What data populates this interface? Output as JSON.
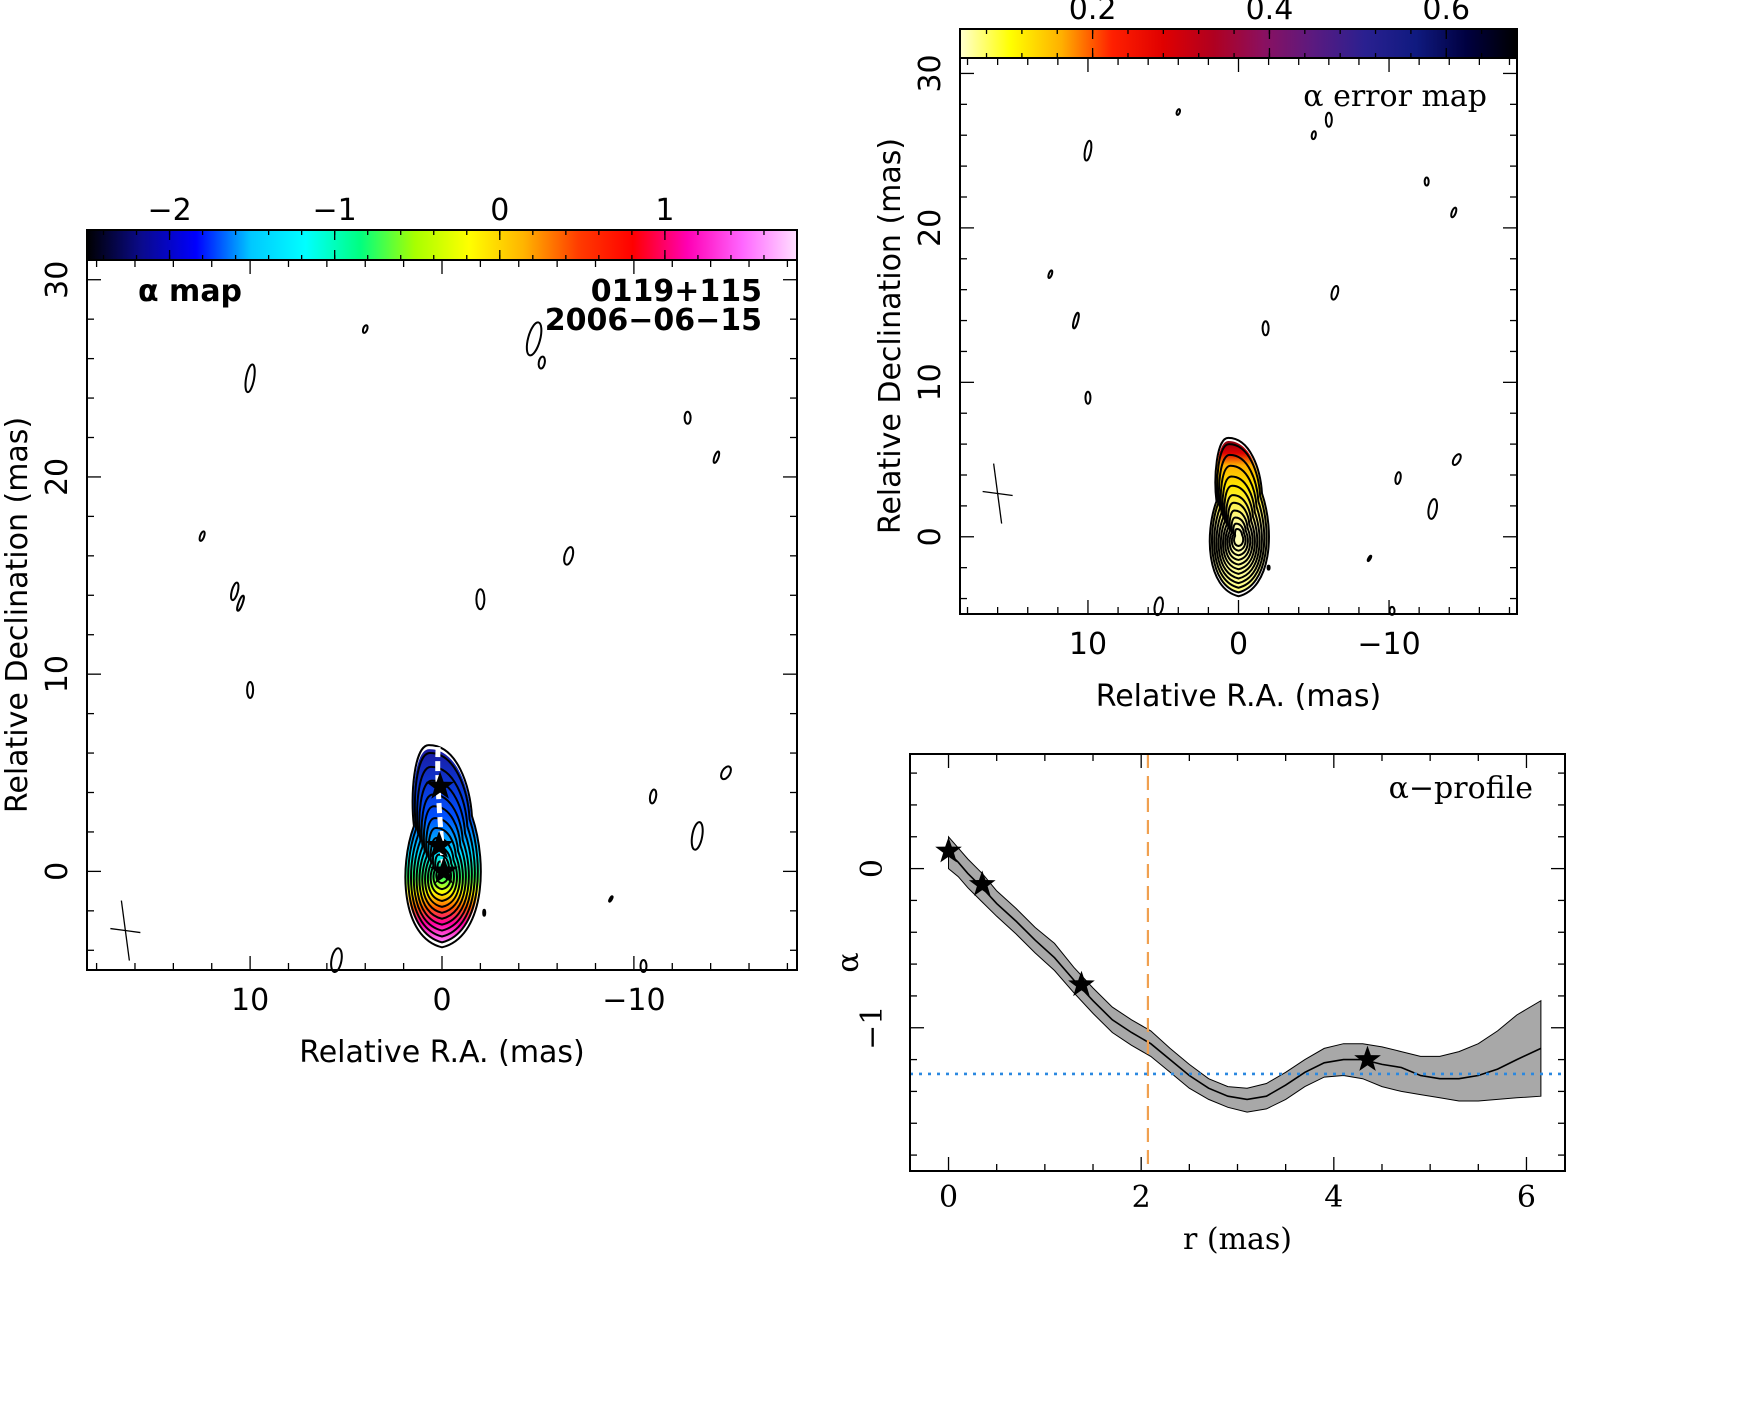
{
  "chart_data": [
    {
      "type": "heatmap",
      "title": "α map",
      "source_label": "0119+115",
      "date_label": "2006−06−15",
      "xlabel": "Relative R.A. (mas)",
      "ylabel": "Relative Declination (mas)",
      "xlim": [
        18.5,
        -18.5
      ],
      "ylim": [
        -5,
        31
      ],
      "x_ticks": [
        10,
        0,
        -10
      ],
      "y_ticks": [
        0,
        10,
        20,
        30
      ],
      "colorbar": {
        "range": [
          -2.5,
          1.8
        ],
        "ticks": [
          -2,
          -1,
          0,
          1
        ],
        "tick_labels": [
          "−2",
          "−1",
          "0",
          "1"
        ],
        "colors": [
          "#000000",
          "#0a0a8c",
          "#0000ff",
          "#00c8ff",
          "#00ffff",
          "#00ff80",
          "#a8ff00",
          "#ffff00",
          "#ffb400",
          "#ff3c00",
          "#ff0000",
          "#ff00b4",
          "#ff66ff",
          "#ffe0ff"
        ]
      },
      "stars": [
        [
          0.1,
          4.3
        ],
        [
          0.15,
          1.3
        ],
        [
          -0.1,
          0.0
        ]
      ],
      "beam_center": [
        16.5,
        -3.0
      ]
    },
    {
      "type": "heatmap",
      "title": "α error map",
      "xlabel": "Relative R.A. (mas)",
      "ylabel": "Relative Declination (mas)",
      "xlim": [
        18.5,
        -18.5
      ],
      "ylim": [
        -5,
        31
      ],
      "x_ticks": [
        10,
        0,
        -10
      ],
      "y_ticks": [
        0,
        10,
        20,
        30
      ],
      "colorbar": {
        "range": [
          0.05,
          0.68
        ],
        "ticks": [
          0.2,
          0.4,
          0.6
        ],
        "tick_labels": [
          "0.2",
          "0.4",
          "0.6"
        ],
        "colors": [
          "#ffffd0",
          "#ffff00",
          "#ffb000",
          "#ff2000",
          "#e00000",
          "#b00020",
          "#8a1060",
          "#5a1a80",
          "#2a2090",
          "#101a80",
          "#000040",
          "#000000"
        ]
      },
      "beam_center": [
        16.0,
        2.8
      ]
    },
    {
      "type": "line",
      "title": "α−profile",
      "xlabel": "r (mas)",
      "ylabel": "α",
      "xlim": [
        -0.4,
        6.4
      ],
      "ylim": [
        -1.9,
        0.72
      ],
      "x_ticks": [
        0,
        2,
        4,
        6
      ],
      "y_ticks": [
        0,
        -1
      ],
      "y_tick_labels": [
        "0",
        "−1"
      ],
      "series": [
        {
          "x": [
            0.0,
            0.1,
            0.2,
            0.35,
            0.5,
            0.7,
            0.9,
            1.1,
            1.3,
            1.5,
            1.7,
            1.9,
            2.1,
            2.3,
            2.5,
            2.7,
            2.9,
            3.1,
            3.3,
            3.5,
            3.7,
            3.9,
            4.1,
            4.3,
            4.5,
            4.7,
            4.9,
            5.1,
            5.3,
            5.5,
            5.7,
            5.9,
            6.15
          ],
          "y": [
            0.1,
            0.04,
            -0.03,
            -0.12,
            -0.22,
            -0.33,
            -0.45,
            -0.56,
            -0.7,
            -0.83,
            -0.95,
            -1.03,
            -1.1,
            -1.2,
            -1.3,
            -1.38,
            -1.43,
            -1.45,
            -1.43,
            -1.36,
            -1.28,
            -1.22,
            -1.2,
            -1.2,
            -1.23,
            -1.25,
            -1.3,
            -1.32,
            -1.32,
            -1.3,
            -1.26,
            -1.2,
            -1.13
          ],
          "err_upper": [
            0.2,
            0.13,
            0.06,
            -0.03,
            -0.14,
            -0.25,
            -0.37,
            -0.47,
            -0.62,
            -0.75,
            -0.87,
            -0.95,
            -1.02,
            -1.13,
            -1.23,
            -1.32,
            -1.37,
            -1.38,
            -1.35,
            -1.28,
            -1.2,
            -1.13,
            -1.1,
            -1.1,
            -1.12,
            -1.15,
            -1.18,
            -1.18,
            -1.15,
            -1.1,
            -1.02,
            -0.92,
            -0.83
          ],
          "err_lower": [
            0.0,
            -0.05,
            -0.12,
            -0.21,
            -0.3,
            -0.41,
            -0.53,
            -0.64,
            -0.78,
            -0.91,
            -1.03,
            -1.11,
            -1.18,
            -1.28,
            -1.38,
            -1.45,
            -1.5,
            -1.53,
            -1.51,
            -1.45,
            -1.37,
            -1.31,
            -1.3,
            -1.32,
            -1.37,
            -1.4,
            -1.42,
            -1.44,
            -1.46,
            -1.46,
            -1.45,
            -1.44,
            -1.43
          ]
        }
      ],
      "stars": [
        [
          0.0,
          0.11
        ],
        [
          0.35,
          -0.1
        ],
        [
          1.38,
          -0.73
        ],
        [
          4.35,
          -1.2
        ]
      ],
      "vline_x": 2.07,
      "hline_y": -1.29
    }
  ]
}
